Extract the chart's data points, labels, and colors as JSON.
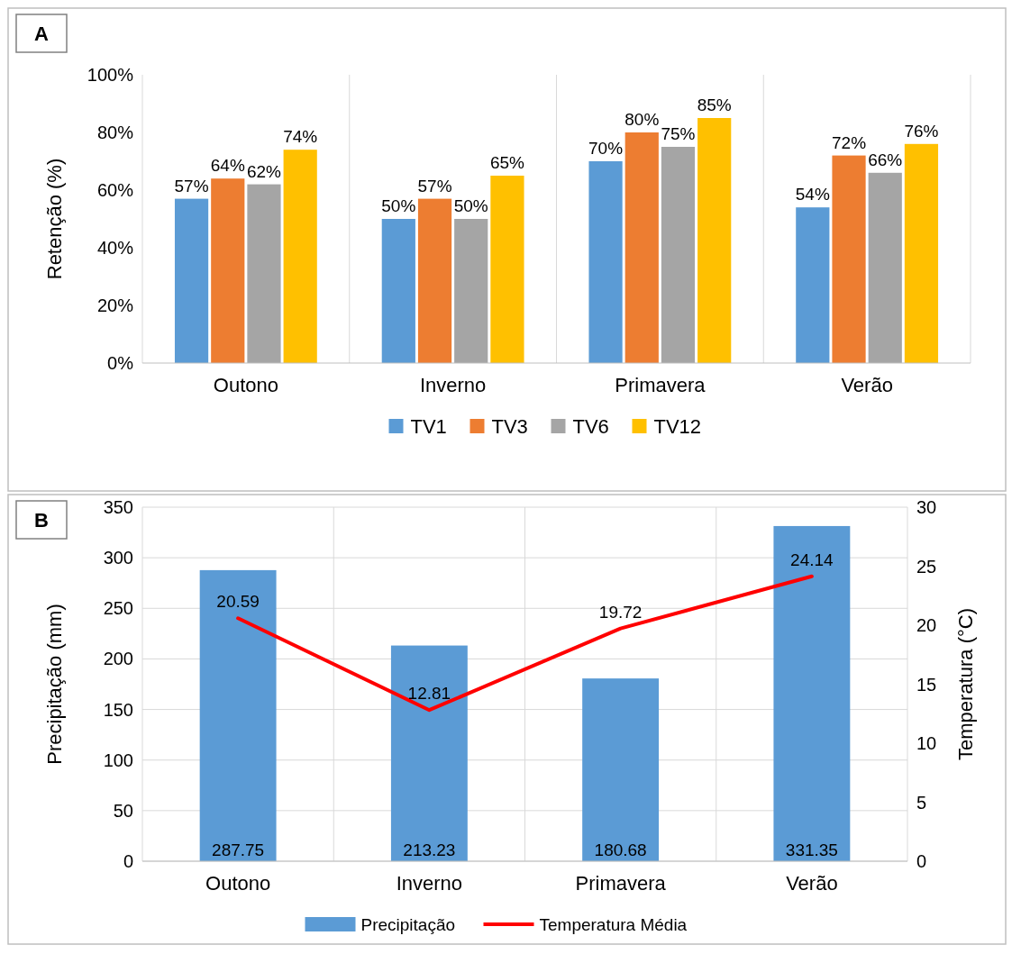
{
  "chart_data": [
    {
      "type": "bar",
      "annotations": [
        "A"
      ],
      "ylabel": "Retenção (%)",
      "categories": [
        "Outono",
        "Inverno",
        "Primavera",
        "Verão"
      ],
      "series": [
        {
          "name": "TV1",
          "color": "#5b9bd5",
          "values": [
            57,
            50,
            70,
            54
          ],
          "value_labels": [
            "57%",
            "50%",
            "70%",
            "54%"
          ]
        },
        {
          "name": "TV3",
          "color": "#ed7d31",
          "values": [
            64,
            57,
            80,
            72
          ],
          "value_labels": [
            "64%",
            "57%",
            "80%",
            "72%"
          ]
        },
        {
          "name": "TV6",
          "color": "#a5a5a5",
          "values": [
            62,
            50,
            75,
            66
          ],
          "value_labels": [
            "62%",
            "50%",
            "75%",
            "66%"
          ]
        },
        {
          "name": "TV12",
          "color": "#ffc000",
          "values": [
            74,
            65,
            85,
            76
          ],
          "value_labels": [
            "74%",
            "65%",
            "85%",
            "76%"
          ]
        }
      ],
      "ylim": [
        0,
        100
      ],
      "yticks": [
        {
          "value": 0,
          "label": "0%"
        },
        {
          "value": 20,
          "label": "20%"
        },
        {
          "value": 40,
          "label": "40%"
        },
        {
          "value": 60,
          "label": "60%"
        },
        {
          "value": 80,
          "label": "80%"
        },
        {
          "value": 100,
          "label": "100%"
        }
      ],
      "grid": "x",
      "legend": "bottom"
    },
    {
      "type": "bar",
      "annotations": [
        "B"
      ],
      "ylabel": "Precipitação  (mm)",
      "y2label": "Temperatura (°C)",
      "categories": [
        "Outono",
        "Inverno",
        "Primavera",
        "Verão"
      ],
      "series": [
        {
          "name": "Precipitação",
          "color": "#5b9bd5",
          "values": [
            287.75,
            213.23,
            180.68,
            331.35
          ]
        },
        {
          "name": "Temperatura Média",
          "type": "line",
          "axis": "y2",
          "color": "#ff0000",
          "values": [
            20.59,
            12.81,
            19.72,
            24.14
          ]
        }
      ],
      "ylim": [
        0,
        350
      ],
      "yticks": [
        0,
        50,
        100,
        150,
        200,
        250,
        300,
        350
      ],
      "y2lim": [
        0,
        30
      ],
      "y2ticks": [
        0,
        5,
        10,
        15,
        20,
        25,
        30
      ],
      "grid": true,
      "data_labels": true,
      "legend": "bottom"
    }
  ]
}
